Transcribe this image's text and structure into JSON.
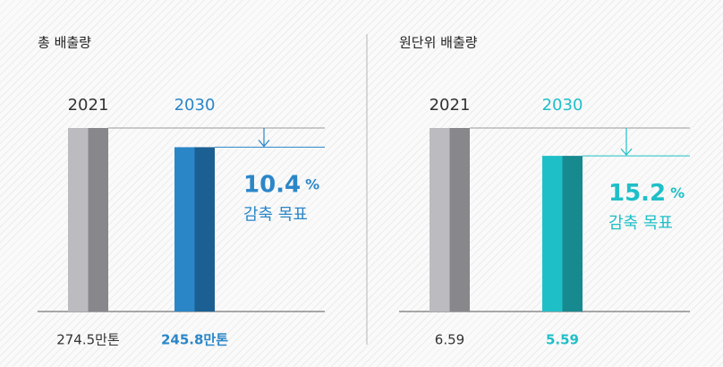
{
  "chart_data": [
    {
      "type": "bar",
      "title": "총 배출량",
      "categories": [
        "2021",
        "2030"
      ],
      "values": [
        274.5,
        245.8
      ],
      "value_labels": [
        "274.5만톤",
        "245.8만톤"
      ],
      "bar_colors": [
        "#bcbcc0",
        "#2b86c8"
      ],
      "bar_shades": [
        "#88888c",
        "#1b5f93"
      ],
      "reduction": 10.4,
      "reduction_unit": "%",
      "reduction_label": "감축 목표"
    },
    {
      "type": "bar",
      "title": "원단위 배출량",
      "categories": [
        "2021",
        "2030"
      ],
      "values": [
        6.59,
        5.59
      ],
      "value_labels": [
        "6.59",
        "5.59"
      ],
      "bar_colors": [
        "#bcbcc0",
        "#1fbfc8"
      ],
      "bar_shades": [
        "#88888c",
        "#178a90"
      ],
      "reduction": 15.2,
      "reduction_unit": "%",
      "reduction_label": "감축 목표"
    }
  ]
}
